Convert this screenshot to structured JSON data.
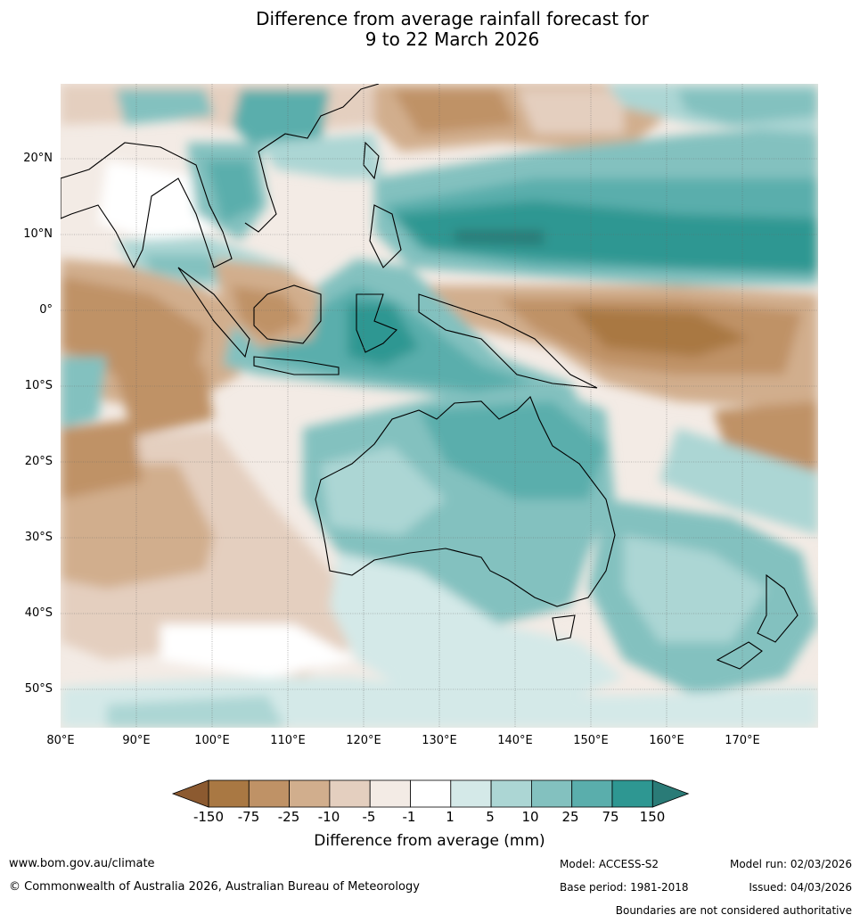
{
  "title": {
    "line1": "Difference from average rainfall forecast for",
    "line2": "9 to 22 March 2026"
  },
  "map": {
    "lat_labels": [
      "20°N",
      "10°N",
      "0°",
      "10°S",
      "20°S",
      "30°S",
      "40°S",
      "50°S"
    ],
    "lon_labels": [
      "80°E",
      "90°E",
      "100°E",
      "110°E",
      "120°E",
      "130°E",
      "140°E",
      "150°E",
      "160°E",
      "170°E"
    ]
  },
  "colorbar": {
    "title": "Difference from average (mm)",
    "tick_labels": [
      "-150",
      "-75",
      "-25",
      "-10",
      "-5",
      "-1",
      "1",
      "5",
      "10",
      "25",
      "75",
      "150"
    ],
    "colors": [
      "#a97843",
      "#bf9266",
      "#d1ae8d",
      "#e4cfbf",
      "#f3ebe5",
      "#ffffff",
      "#d4e9e8",
      "#acd6d4",
      "#83c1bf",
      "#5aaeac",
      "#2e9792"
    ],
    "under_color": "#8c5a30",
    "over_color": "#2a7b77"
  },
  "footer": {
    "website": "www.bom.gov.au/climate",
    "copyright": "© Commonwealth of Australia 2026, Australian Bureau of Meteorology",
    "model": "Model: ACCESS-S2",
    "base_period": "Base period: 1981-2018",
    "model_run": "Model run: 02/03/2026",
    "issued": "Issued: 04/03/2026",
    "disclaimer": "Boundaries are not considered authoritative"
  }
}
